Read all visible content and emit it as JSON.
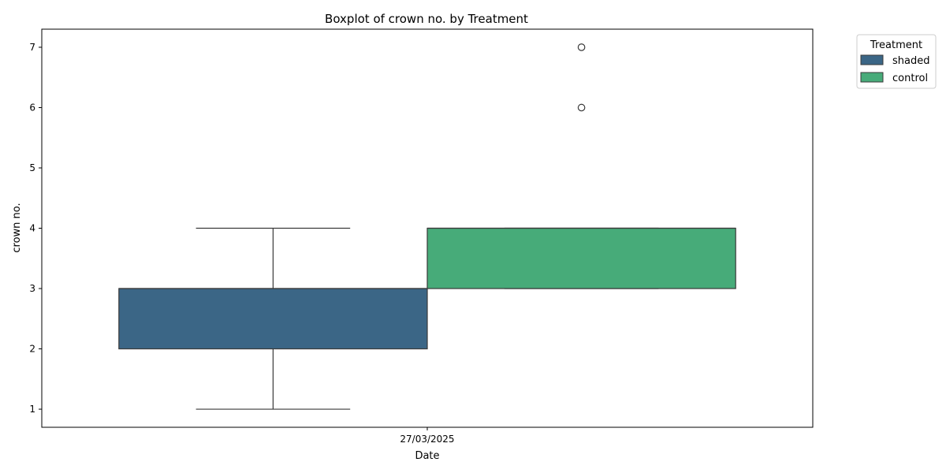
{
  "chart_data": {
    "type": "box",
    "title": "Boxplot of crown no. by Treatment",
    "xlabel": "Date",
    "ylabel": "crown no.",
    "categories": [
      "27/03/2025"
    ],
    "ylim": [
      0.7,
      7.3
    ],
    "yticks": [
      1,
      2,
      3,
      4,
      5,
      6,
      7
    ],
    "grid": false,
    "legend": {
      "title": "Treatment",
      "placement": "outside-top-right"
    },
    "series": [
      {
        "name": "shaded",
        "color": "#3b6686",
        "whisker_low": 1,
        "q1": 2,
        "median": 3,
        "q3": 3,
        "whisker_high": 4,
        "outliers": []
      },
      {
        "name": "control",
        "color": "#47ab79",
        "whisker_low": 3,
        "q1": 3,
        "median": 4,
        "q3": 4,
        "whisker_high": 4,
        "outliers": [
          6,
          7
        ]
      }
    ]
  }
}
